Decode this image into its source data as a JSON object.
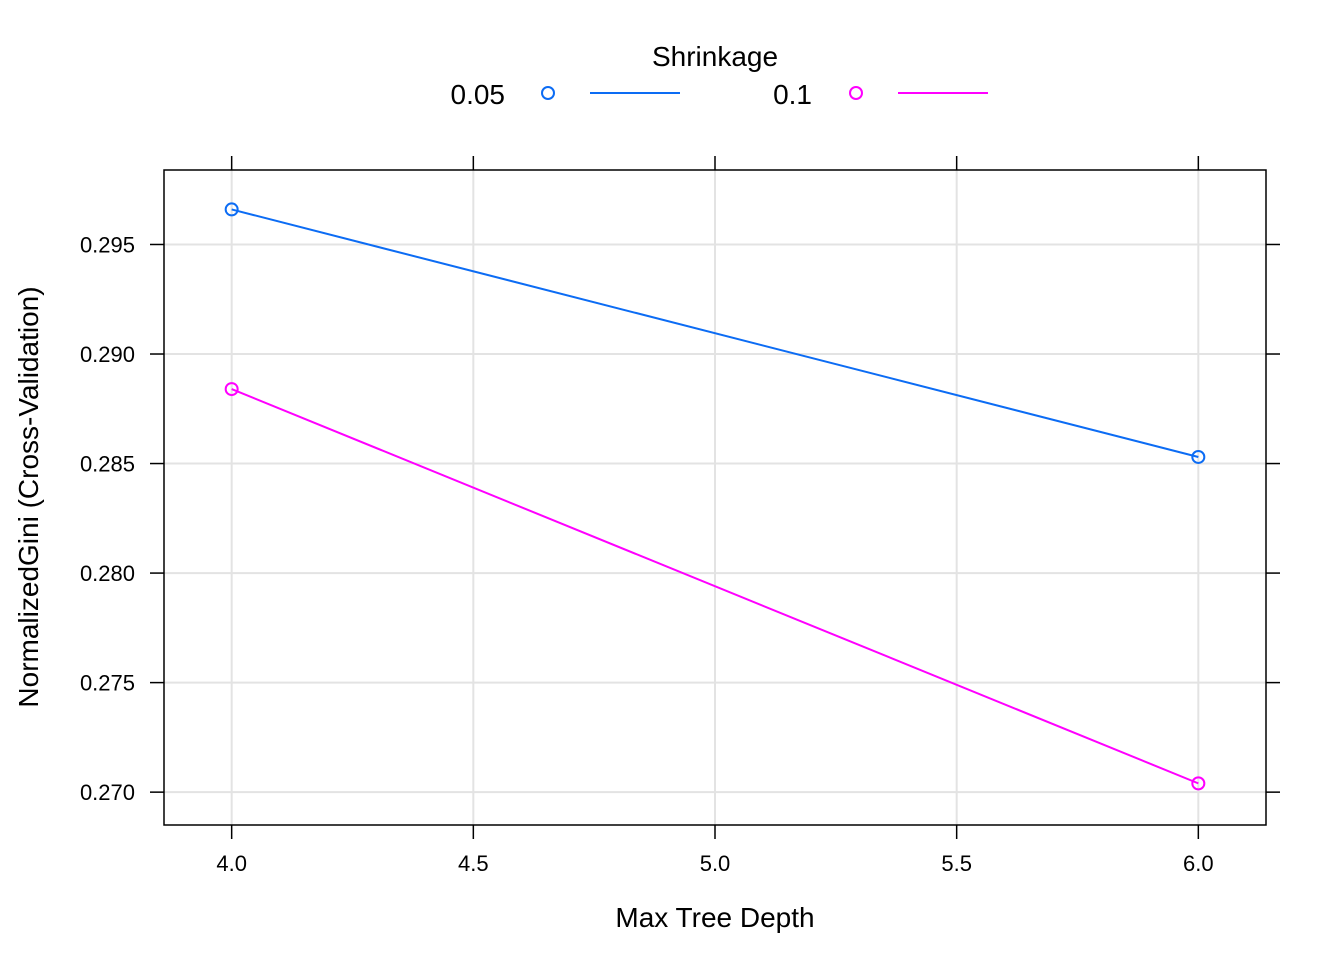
{
  "chart_data": {
    "type": "line",
    "title": "",
    "xlabel": "Max Tree Depth",
    "ylabel": "NormalizedGini (Cross-Validation)",
    "xlim": [
      3.86,
      6.14
    ],
    "ylim": [
      0.2685,
      0.2984
    ],
    "x_ticks": [
      {
        "value": 4.0,
        "label": "4.0"
      },
      {
        "value": 4.5,
        "label": "4.5"
      },
      {
        "value": 5.0,
        "label": "5.0"
      },
      {
        "value": 5.5,
        "label": "5.5"
      },
      {
        "value": 6.0,
        "label": "6.0"
      }
    ],
    "y_ticks": [
      {
        "value": 0.27,
        "label": "0.270"
      },
      {
        "value": 0.275,
        "label": "0.275"
      },
      {
        "value": 0.28,
        "label": "0.280"
      },
      {
        "value": 0.285,
        "label": "0.285"
      },
      {
        "value": 0.29,
        "label": "0.290"
      },
      {
        "value": 0.295,
        "label": "0.295"
      }
    ],
    "grid": true,
    "legend": {
      "title": "Shrinkage",
      "placement": "top"
    },
    "series": [
      {
        "name": "0.05",
        "color": "#0c6cf4",
        "x": [
          4.0,
          6.0
        ],
        "y": [
          0.2966,
          0.2853
        ]
      },
      {
        "name": "0.1",
        "color": "#ff00ff",
        "x": [
          4.0,
          6.0
        ],
        "y": [
          0.2884,
          0.2704
        ]
      }
    ]
  }
}
